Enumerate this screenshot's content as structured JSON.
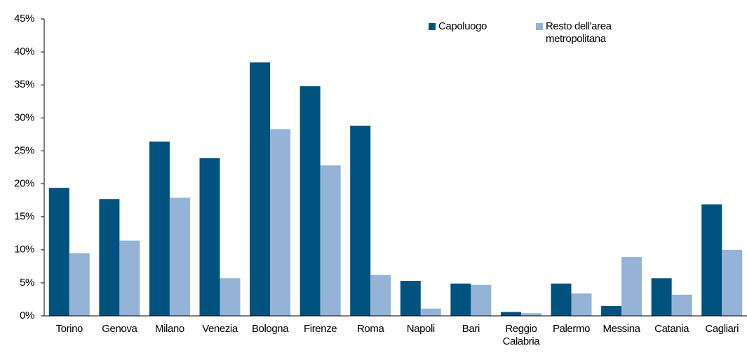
{
  "chart_data": {
    "type": "bar",
    "categories": [
      "Torino",
      "Genova",
      "Milano",
      "Venezia",
      "Bologna",
      "Firenze",
      "Roma",
      "Napoli",
      "Bari",
      "Reggio Calabria",
      "Palermo",
      "Messina",
      "Catania",
      "Cagliari"
    ],
    "series": [
      {
        "name": "Capoluogo",
        "color": "#00527f",
        "values": [
          19.4,
          17.7,
          26.4,
          23.9,
          38.4,
          34.8,
          28.8,
          5.3,
          4.9,
          0.6,
          4.9,
          1.5,
          5.7,
          16.9
        ]
      },
      {
        "name": "Resto dell'area metropolitana",
        "color": "#95b3d7",
        "values": [
          9.5,
          11.4,
          17.9,
          5.7,
          28.3,
          22.8,
          6.2,
          1.1,
          4.7,
          0.4,
          3.4,
          8.9,
          3.2,
          10.0
        ]
      }
    ],
    "ylim": [
      0,
      45
    ],
    "yticks": [
      {
        "value": 0,
        "label": "0%"
      },
      {
        "value": 5,
        "label": "5%"
      },
      {
        "value": 10,
        "label": "10%"
      },
      {
        "value": 15,
        "label": "15%"
      },
      {
        "value": 20,
        "label": "20%"
      },
      {
        "value": 25,
        "label": "25%"
      },
      {
        "value": 30,
        "label": "30%"
      },
      {
        "value": 35,
        "label": "35%"
      },
      {
        "value": 40,
        "label": "40%"
      },
      {
        "value": 45,
        "label": "45%"
      }
    ],
    "legend": "top-right"
  }
}
